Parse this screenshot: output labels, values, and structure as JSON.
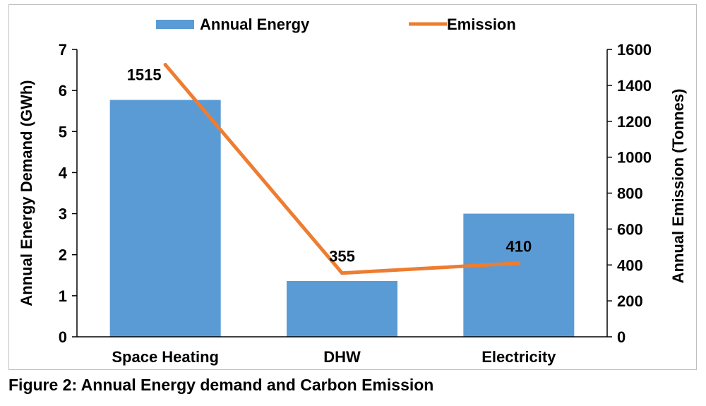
{
  "caption": "Figure 2: Annual Energy demand and Carbon Emission",
  "chart_data": {
    "type": "bar",
    "categories": [
      "Space Heating",
      "DHW",
      "Electricity"
    ],
    "series": [
      {
        "name": "Annual Energy",
        "type": "bar",
        "axis": "left",
        "values": [
          5.77,
          1.36,
          3.0
        ],
        "color": "#5b9bd5"
      },
      {
        "name": "Emission",
        "type": "line",
        "axis": "right",
        "values": [
          1515,
          355,
          410
        ],
        "data_labels": [
          "1515",
          "355",
          "410"
        ],
        "color": "#ed7d31"
      }
    ],
    "ylabel": "Annual Energy Demand (GWh)",
    "y2label": "Annual Emission (Tonnes)",
    "ylim": [
      0,
      7
    ],
    "y2lim": [
      0,
      1600
    ],
    "yticks": [
      "0",
      "1",
      "2",
      "3",
      "4",
      "5",
      "6",
      "7"
    ],
    "y2ticks": [
      "0",
      "200",
      "400",
      "600",
      "800",
      "1000",
      "1200",
      "1400",
      "1600"
    ],
    "legend_position": "top",
    "grid": false
  }
}
